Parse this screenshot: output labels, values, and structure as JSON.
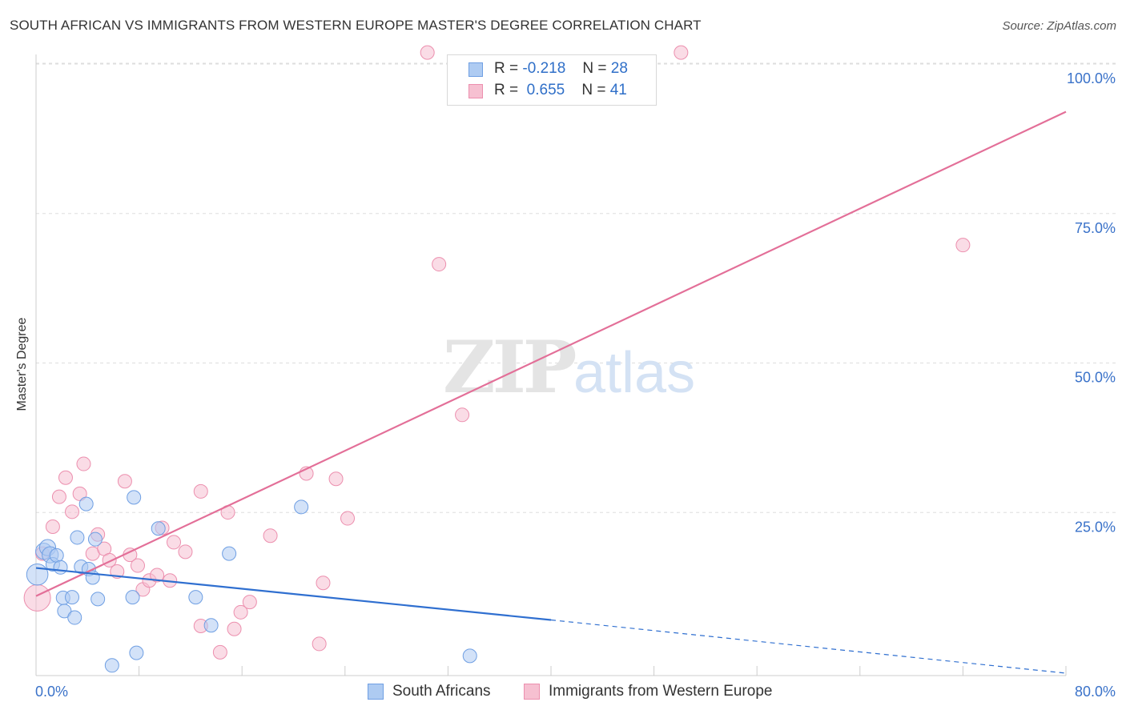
{
  "header": {
    "title": "SOUTH AFRICAN VS IMMIGRANTS FROM WESTERN EUROPE MASTER'S DEGREE CORRELATION CHART",
    "source": "Source: ZipAtlas.com"
  },
  "watermark": {
    "zip": "ZIP",
    "atlas": "atlas"
  },
  "legend_top": {
    "rows": [
      {
        "r_label": "R =",
        "r_value": "-0.218",
        "n_label": "N =",
        "n_value": "28"
      },
      {
        "r_label": "R =",
        "r_value": "0.655",
        "n_label": "N =",
        "n_value": "41"
      }
    ]
  },
  "legend_bottom": {
    "items": [
      {
        "label": "South Africans"
      },
      {
        "label": "Immigrants from Western Europe"
      }
    ]
  },
  "colors": {
    "blue_fill": "#aecbf2",
    "blue_stroke": "#6f9fe3",
    "blue_line": "#2f6fd0",
    "pink_fill": "#f6c0d1",
    "pink_stroke": "#ec8fae",
    "pink_line": "#e36f98",
    "grid": "#dddddd",
    "tick_label": "#3a72c9"
  },
  "chart_data": {
    "type": "scatter",
    "title": "SOUTH AFRICAN VS IMMIGRANTS FROM WESTERN EUROPE MASTER'S DEGREE CORRELATION CHART",
    "xlabel": "",
    "ylabel": "Master's Degree",
    "xlim": [
      0,
      80
    ],
    "ylim": [
      0,
      100
    ],
    "x_tick_labels": [
      "0.0%",
      "80.0%"
    ],
    "y_ticks": [
      25,
      50,
      75,
      100
    ],
    "y_tick_labels": [
      "25.0%",
      "50.0%",
      "75.0%",
      "100.0%"
    ],
    "grid": true,
    "series": [
      {
        "name": "South Africans",
        "r": -0.218,
        "n": 28,
        "points": [
          [
            0.1,
            16.9,
            16
          ],
          [
            0.6,
            20.8,
            12
          ],
          [
            0.9,
            21.4,
            12
          ],
          [
            1.1,
            20.2,
            12
          ],
          [
            1.3,
            18.6,
            10
          ],
          [
            1.6,
            20.1,
            10
          ],
          [
            1.9,
            18.1,
            10
          ],
          [
            2.1,
            13.0,
            10
          ],
          [
            2.2,
            10.8,
            10
          ],
          [
            2.8,
            13.1,
            10
          ],
          [
            3.0,
            9.7,
            10
          ],
          [
            3.2,
            23.1,
            10
          ],
          [
            3.5,
            18.2,
            10
          ],
          [
            3.9,
            28.7,
            10
          ],
          [
            4.1,
            17.8,
            10
          ],
          [
            4.4,
            16.4,
            10
          ],
          [
            4.6,
            22.8,
            10
          ],
          [
            4.8,
            12.8,
            10
          ],
          [
            5.9,
            1.7,
            10
          ],
          [
            7.5,
            13.1,
            10
          ],
          [
            7.6,
            29.8,
            10
          ],
          [
            7.8,
            3.8,
            10
          ],
          [
            9.5,
            24.6,
            10
          ],
          [
            12.4,
            13.1,
            10
          ],
          [
            13.6,
            8.4,
            10
          ],
          [
            15.0,
            20.4,
            10
          ],
          [
            20.6,
            28.2,
            10
          ],
          [
            33.7,
            3.3,
            10
          ]
        ]
      },
      {
        "name": "Immigrants from Western Europe",
        "r": 0.655,
        "n": 41,
        "points": [
          [
            0.1,
            13.0,
            20
          ],
          [
            0.5,
            20.4,
            10
          ],
          [
            1.3,
            24.9,
            10
          ],
          [
            1.8,
            29.9,
            10
          ],
          [
            2.3,
            33.1,
            10
          ],
          [
            2.8,
            27.4,
            10
          ],
          [
            3.4,
            30.4,
            10
          ],
          [
            3.7,
            35.4,
            10
          ],
          [
            4.4,
            20.4,
            10
          ],
          [
            4.8,
            23.6,
            10
          ],
          [
            5.3,
            21.2,
            10
          ],
          [
            5.7,
            19.3,
            10
          ],
          [
            6.3,
            17.4,
            10
          ],
          [
            6.9,
            32.5,
            10
          ],
          [
            7.3,
            20.2,
            10
          ],
          [
            7.9,
            18.4,
            10
          ],
          [
            8.3,
            14.4,
            10
          ],
          [
            8.8,
            15.9,
            10
          ],
          [
            9.4,
            16.8,
            10
          ],
          [
            9.8,
            24.7,
            10
          ],
          [
            10.4,
            15.9,
            10
          ],
          [
            10.7,
            22.3,
            10
          ],
          [
            11.6,
            20.7,
            10
          ],
          [
            12.8,
            8.3,
            10
          ],
          [
            12.8,
            30.8,
            10
          ],
          [
            14.3,
            3.9,
            10
          ],
          [
            14.9,
            27.3,
            10
          ],
          [
            15.4,
            7.8,
            10
          ],
          [
            15.9,
            10.6,
            10
          ],
          [
            16.6,
            12.3,
            10
          ],
          [
            18.2,
            23.4,
            10
          ],
          [
            21.0,
            33.8,
            10
          ],
          [
            22.0,
            5.3,
            10
          ],
          [
            22.3,
            15.5,
            10
          ],
          [
            23.3,
            32.9,
            10
          ],
          [
            24.2,
            26.3,
            10
          ],
          [
            30.4,
            104.2,
            10
          ],
          [
            31.3,
            68.8,
            10
          ],
          [
            33.1,
            43.6,
            10
          ],
          [
            50.1,
            104.2,
            10
          ],
          [
            72.0,
            72.0,
            10
          ]
        ]
      }
    ],
    "trend_lines": [
      {
        "series": "South Africans",
        "from": [
          0,
          18.0
        ],
        "to": [
          40,
          9.3
        ],
        "dashed_to": [
          80,
          0.4
        ]
      },
      {
        "series": "Immigrants from Western Europe",
        "from": [
          0,
          13.3
        ],
        "to": [
          80,
          94.3
        ]
      }
    ]
  }
}
